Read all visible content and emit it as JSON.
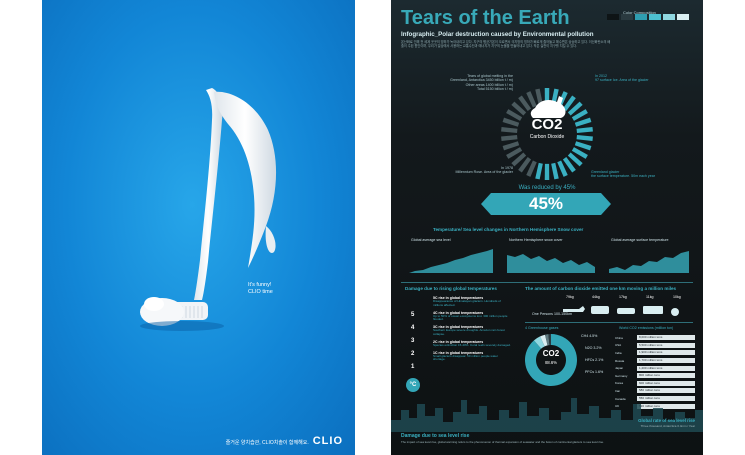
{
  "left_poster": {
    "tagline_line1": "It's funny!",
    "tagline_line2": "CLIO time",
    "footer_korean": "즐거운 양치습관, CLIO치솔이 함께해요.",
    "brand": "CLIO",
    "colors": {
      "background": "#1286d6",
      "toothpaste": "#f4f6f8"
    }
  },
  "right_poster": {
    "title": "Tears of the Earth",
    "subtitle": "Infographic_Polar destruction caused by Environmental  pollution",
    "color_composition_label": "Color Composition",
    "swatches": [
      "#0e1416",
      "#2a3a40",
      "#2f9db0",
      "#4dc0d0",
      "#8fd7e0",
      "#d9eef1"
    ],
    "intro": "온난화로 인해 전 세계 곳곳의 빙하가 녹아내리고 있다. 지구의 평균기온이 오르면서 극지방의 빙하가 빠르게 줄어들고 해수면은 상승하고 있다. 이산화탄소의 배출이 주된 원인이며, 우리가 일상에서 사용하는 교통수단과 에너지가 지구의 눈물을 만들어내고 있다. 작은 실천이 지구를 지킬 수 있다.",
    "melt": {
      "line1": "Tears of global melting in the",
      "line2": "Greenland, Antarctica 3450 billion t / m)",
      "line3": "Other areas 1400 billion t / m)",
      "line4": "Total 5150 billion t / m)"
    },
    "in2012": {
      "year": "In 2012",
      "text": "97 surface Ice. Area of the glacier"
    },
    "in1978": {
      "year": "In 1978",
      "text": "Millennium Rose. Area of the glacier"
    },
    "greenland": {
      "line1": "Greenland glacier",
      "line2": "the surface temperature. 50m each year"
    },
    "co2": {
      "formula": "CO2",
      "name": "Carbon Dioxide"
    },
    "reduced_label": "Was reduced by 45%",
    "percent": "45%",
    "temp_section_title": "Temperature/ Sea level changes in Northern Hemisphere Snow cover",
    "mini_charts": [
      {
        "label": "Global average sea level"
      },
      {
        "label": "Northern Hemisphere snow cover"
      },
      {
        "label": "Global average surface temperature"
      }
    ],
    "damage_title": "Damage due to rising global temperatures",
    "temp_numbers": [
      "5",
      "4",
      "3",
      "2",
      "1"
    ],
    "thermo_label": "°C",
    "temp_items": [
      {
        "head": "5C rise in global temperatures",
        "text": "Disappearance of Himalayan glaciers. Hundreds of millions affected."
      },
      {
        "head": "4C rise in global temperatures",
        "text": "Up to 50% of ocean ecosystems lost. 300 million people flooded."
      },
      {
        "head": "3C rise in global temperatures",
        "text": "Southern Europe severe droughts. Amazon rain forest collapse."
      },
      {
        "head": "2C rise in global temperatures",
        "text": "Species extinction 15-40%. Coral reefs severely damaged."
      },
      {
        "head": "1C rise in global temperatures",
        "text": "Small glaciers disappear. 50 million people water shortage."
      }
    ],
    "carbon_title": "The amount of carbon dioxide emitted one km moving a million miles",
    "transport": [
      {
        "value": "79kg"
      },
      {
        "value": "44kg"
      },
      {
        "value": "17kg"
      },
      {
        "value": "11kg"
      },
      {
        "value": "10kg"
      }
    ],
    "one_person": "One Persons 100-150km",
    "greenhouse_label": "4 Greenhouse gases",
    "donut": {
      "label": "CO2",
      "pct": "88.6%",
      "values": [
        88.6,
        4.5,
        3.2,
        2.1,
        1.6
      ]
    },
    "donut_labels": [
      "CH4 4.5%",
      "N2O 3.2%",
      "HFCs 2.1%",
      "PFCs 1.6%"
    ],
    "table_title": "World CO2 emissions (million ton)",
    "table": [
      {
        "k": "China",
        "v": "8,000 million tons"
      },
      {
        "k": "USA",
        "v": "5,500 million tons"
      },
      {
        "k": "India",
        "v": "1,900 million tons"
      },
      {
        "k": "Russia",
        "v": "1,700 million tons"
      },
      {
        "k": "Japan",
        "v": "1,200 million tons"
      },
      {
        "k": "Germany",
        "v": "800 million tons"
      },
      {
        "k": "Korea",
        "v": "600 million tons"
      },
      {
        "k": "Iran",
        "v": "580 million tons"
      },
      {
        "k": "Canada",
        "v": "550 million tons"
      },
      {
        "k": "UK",
        "v": "520 million tons"
      }
    ],
    "sea_rise_title": "Global rate of sea level rise",
    "sea_rise_sub": "Three thousand, Antarctica 0.4mm / Year",
    "bottom_title": "Damage due to sea level rise",
    "bottom_text": "The impact of sea level rise, global warming refers to the phenomenon of thermal expansion of seawater and the fusion of continental glaciers to sea level rise."
  }
}
